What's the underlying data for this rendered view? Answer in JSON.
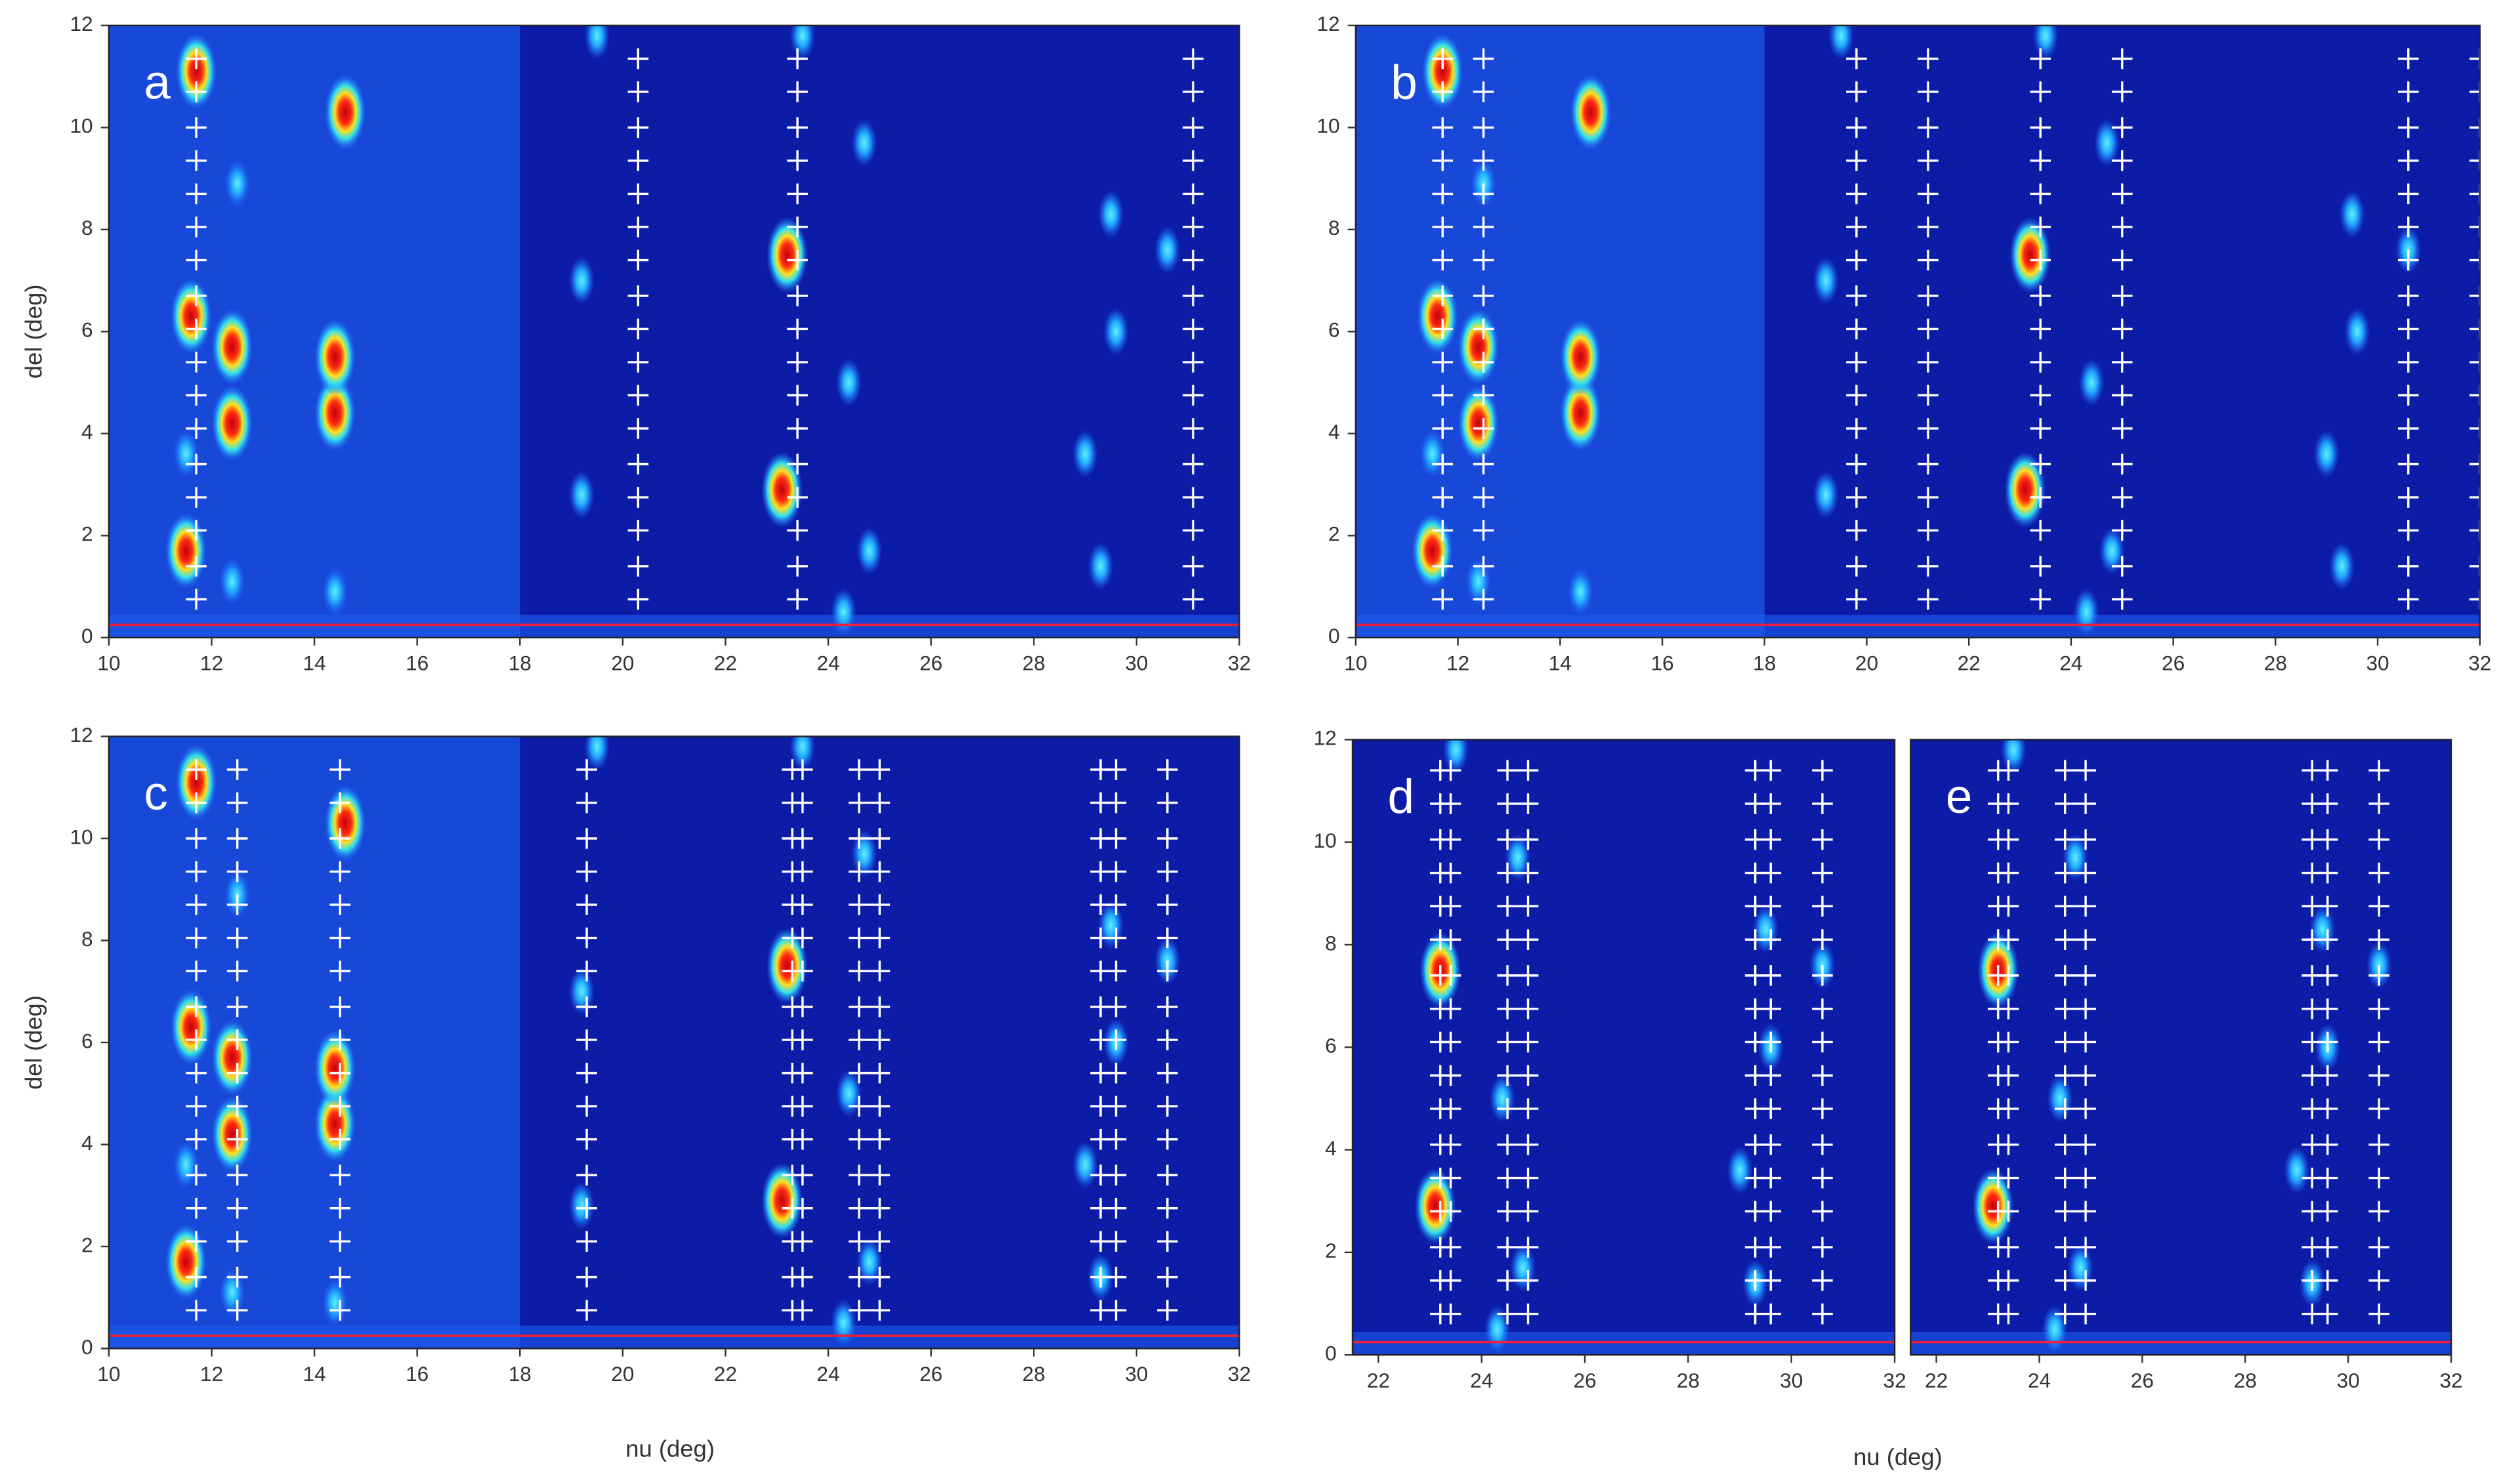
{
  "chart_data": [
    {
      "type": "heatmap",
      "label": "a",
      "ylabel": "del (deg)",
      "xlim": [
        10,
        32
      ],
      "ylim": [
        0,
        12
      ],
      "xticks": [
        10,
        12,
        14,
        16,
        18,
        20,
        22,
        24,
        26,
        28,
        30,
        32
      ],
      "yticks": [
        0,
        2,
        4,
        6,
        8,
        10,
        12
      ],
      "line_y": 0.25,
      "line_color": "#e8203c",
      "spots": [
        {
          "color": "red",
          "x": [
            11.7,
            14.6,
            23.2,
            11.6,
            12.4,
            14.4,
            23.1,
            11.5,
            12.4,
            14.4
          ],
          "y": [
            11.1,
            10.3,
            7.5,
            6.3,
            4.2,
            4.4,
            2.9,
            1.7,
            5.7,
            5.5
          ]
        },
        {
          "color": "cyan",
          "x": [
            12.5,
            19.2,
            24.4,
            24.8,
            19.2,
            29.5,
            30.6,
            24.7,
            19.5,
            23.5,
            29.0,
            29.3,
            24.3,
            12.4,
            14.4,
            11.5,
            29.6
          ],
          "y": [
            8.9,
            7.0,
            5.0,
            1.7,
            2.8,
            8.3,
            7.6,
            9.7,
            11.8,
            11.8,
            3.6,
            1.4,
            0.5,
            1.1,
            0.9,
            3.6,
            6.0
          ]
        }
      ],
      "cross_x": [
        11.7,
        20.3,
        23.4,
        31.1
      ],
      "cross_y": [
        0.75,
        1.4,
        2.1,
        2.75,
        3.4,
        4.1,
        4.75,
        5.4,
        6.05,
        6.7,
        7.4,
        8.05,
        8.7,
        9.35,
        10.0,
        10.7,
        11.35
      ]
    },
    {
      "type": "heatmap",
      "label": "b",
      "xlim": [
        10,
        32
      ],
      "ylim": [
        0,
        12
      ],
      "xticks": [
        10,
        12,
        14,
        16,
        18,
        20,
        22,
        24,
        26,
        28,
        30,
        32
      ],
      "yticks": [
        0,
        2,
        4,
        6,
        8,
        10,
        12
      ],
      "line_y": 0.25,
      "line_color": "#e8203c",
      "spots": [
        {
          "color": "red",
          "x": [
            11.7,
            14.6,
            23.2,
            11.6,
            12.4,
            14.4,
            23.1,
            11.5,
            12.4,
            14.4
          ],
          "y": [
            11.1,
            10.3,
            7.5,
            6.3,
            4.2,
            4.4,
            2.9,
            1.7,
            5.7,
            5.5
          ]
        },
        {
          "color": "cyan",
          "x": [
            12.5,
            19.2,
            24.4,
            24.8,
            19.2,
            29.5,
            30.6,
            24.7,
            19.5,
            23.5,
            29.0,
            29.3,
            24.3,
            12.4,
            14.4,
            11.5,
            29.6
          ],
          "y": [
            8.9,
            7.0,
            5.0,
            1.7,
            2.8,
            8.3,
            7.6,
            9.7,
            11.8,
            11.8,
            3.6,
            1.4,
            0.5,
            1.1,
            0.9,
            3.6,
            6.0
          ]
        }
      ],
      "cross_x": [
        11.7,
        12.5,
        19.8,
        21.2,
        23.4,
        25.0,
        30.6,
        32.0
      ],
      "cross_y": [
        0.75,
        1.4,
        2.1,
        2.75,
        3.4,
        4.1,
        4.75,
        5.4,
        6.05,
        6.7,
        7.4,
        8.05,
        8.7,
        9.35,
        10.0,
        10.7,
        11.35
      ]
    },
    {
      "type": "heatmap",
      "label": "c",
      "ylabel": "del (deg)",
      "xlabel": "nu (deg)",
      "xlim": [
        10,
        32
      ],
      "ylim": [
        0,
        12
      ],
      "xticks": [
        10,
        12,
        14,
        16,
        18,
        20,
        22,
        24,
        26,
        28,
        30,
        32
      ],
      "yticks": [
        0,
        2,
        4,
        6,
        8,
        10,
        12
      ],
      "line_y": 0.25,
      "line_color": "#e8203c",
      "spots": [
        {
          "color": "red",
          "x": [
            11.7,
            14.6,
            23.2,
            11.6,
            12.4,
            14.4,
            23.1,
            11.5,
            12.4,
            14.4
          ],
          "y": [
            11.1,
            10.3,
            7.5,
            6.3,
            4.2,
            4.4,
            2.9,
            1.7,
            5.7,
            5.5
          ]
        },
        {
          "color": "cyan",
          "x": [
            12.5,
            19.2,
            24.4,
            24.8,
            19.2,
            29.5,
            30.6,
            24.7,
            19.5,
            23.5,
            29.0,
            29.3,
            24.3,
            12.4,
            14.4,
            11.5,
            29.6
          ],
          "y": [
            8.9,
            7.0,
            5.0,
            1.7,
            2.8,
            8.3,
            7.6,
            9.7,
            11.8,
            11.8,
            3.6,
            1.4,
            0.5,
            1.1,
            0.9,
            3.6,
            6.0
          ]
        }
      ],
      "cross_x": [
        11.7,
        12.5,
        14.5,
        19.3,
        23.3,
        23.5,
        24.6,
        25.0,
        29.3,
        29.6,
        30.6
      ],
      "cross_y": [
        0.75,
        1.4,
        2.1,
        2.75,
        3.4,
        4.1,
        4.75,
        5.4,
        6.05,
        6.7,
        7.4,
        8.05,
        8.7,
        9.35,
        10.0,
        10.7,
        11.35
      ]
    },
    {
      "type": "heatmap",
      "label": "d",
      "xlabel": "nu (deg)",
      "xlim": [
        21.5,
        32
      ],
      "ylim": [
        0,
        12
      ],
      "xticks": [
        22,
        24,
        26,
        28,
        30,
        32
      ],
      "yticks": [
        0,
        2,
        4,
        6,
        8,
        10,
        12
      ],
      "line_y": 0.25,
      "line_color": "#e8203c",
      "spots": [
        {
          "color": "red",
          "x": [
            23.2,
            23.1
          ],
          "y": [
            7.5,
            2.9
          ]
        },
        {
          "color": "cyan",
          "x": [
            24.4,
            24.8,
            29.5,
            30.6,
            24.7,
            23.5,
            29.0,
            29.3,
            24.3,
            29.6
          ],
          "y": [
            5.0,
            1.7,
            8.3,
            7.6,
            9.7,
            11.8,
            3.6,
            1.4,
            0.5,
            6.0
          ]
        }
      ],
      "cross_x": [
        23.2,
        23.4,
        24.5,
        24.9,
        29.3,
        29.6,
        30.6
      ],
      "cross_y": [
        0.8,
        1.45,
        2.1,
        2.8,
        3.45,
        4.1,
        4.8,
        5.45,
        6.1,
        6.75,
        7.4,
        8.1,
        8.75,
        9.4,
        10.05,
        10.75,
        11.4
      ]
    },
    {
      "type": "heatmap",
      "label": "e",
      "xlim": [
        21.5,
        32
      ],
      "ylim": [
        0,
        12
      ],
      "xticks": [
        22,
        24,
        26,
        28,
        30,
        32
      ],
      "line_y": 0.25,
      "line_color": "#e8203c",
      "spots": [
        {
          "color": "red",
          "x": [
            23.2,
            23.1
          ],
          "y": [
            7.5,
            2.9
          ]
        },
        {
          "color": "cyan",
          "x": [
            24.4,
            24.8,
            29.5,
            30.6,
            24.7,
            23.5,
            29.0,
            29.3,
            24.3,
            29.6
          ],
          "y": [
            5.0,
            1.7,
            8.3,
            7.6,
            9.7,
            11.8,
            3.6,
            1.4,
            0.5,
            6.0
          ]
        }
      ],
      "cross_x": [
        23.2,
        23.4,
        24.5,
        24.9,
        29.3,
        29.6,
        30.6
      ],
      "cross_y": [
        0.8,
        1.45,
        2.1,
        2.8,
        3.45,
        4.1,
        4.8,
        5.45,
        6.1,
        6.75,
        7.4,
        8.1,
        8.75,
        9.4,
        10.05,
        10.75,
        11.4
      ]
    }
  ]
}
